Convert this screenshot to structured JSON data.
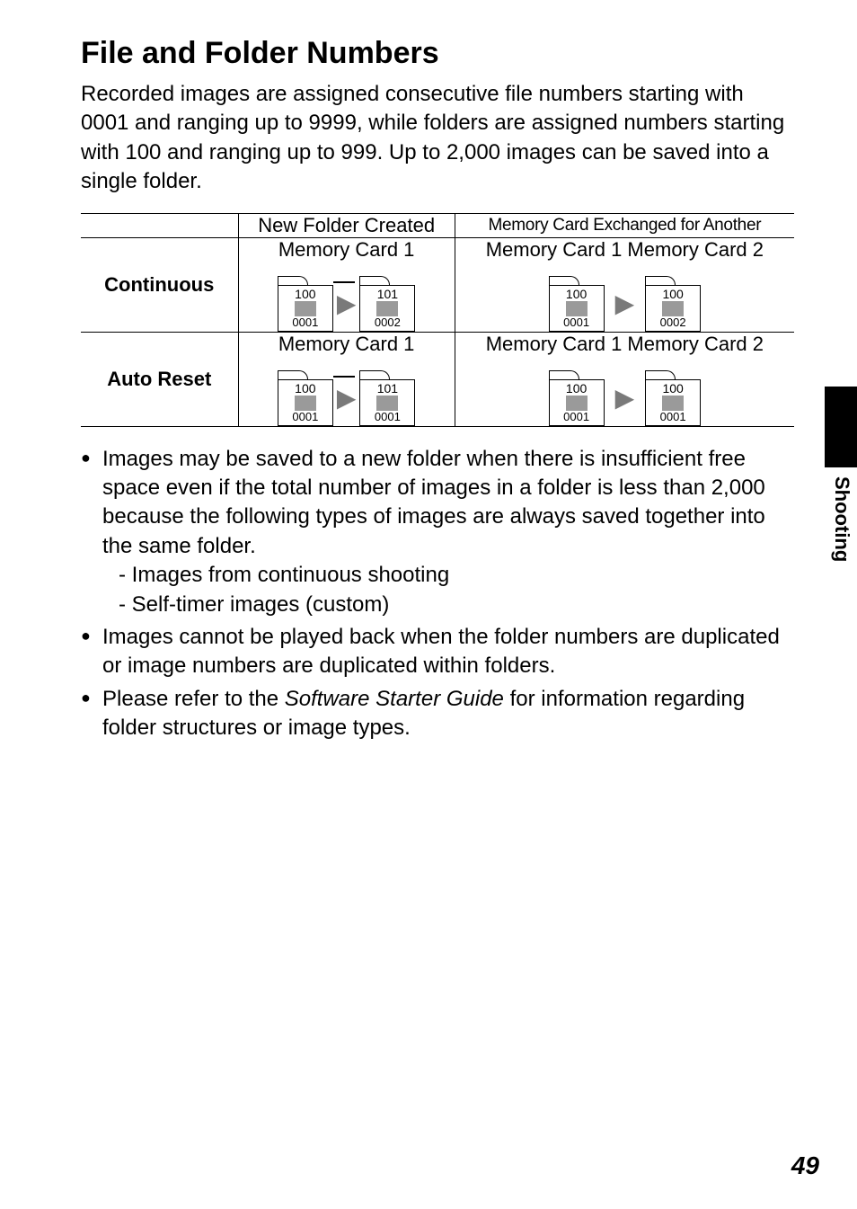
{
  "heading": "File and Folder Numbers",
  "intro": "Recorded images are assigned consecutive file numbers starting with 0001 and ranging up to 9999, while folders are assigned numbers starting with 100 and ranging up to 999. Up to 2,000 images can be saved into a single folder.",
  "table": {
    "col1_header": "New Folder Created",
    "col2_header": "Memory Card Exchanged for Another",
    "rows": [
      {
        "label": "Continuous",
        "c1_label": "Memory Card 1",
        "c1_f1_folder": "100",
        "c1_f1_file": "0001",
        "c1_f2_folder": "101",
        "c1_f2_file": "0002",
        "c2_label": "Memory Card 1 Memory Card 2",
        "c2_f1_folder": "100",
        "c2_f1_file": "0001",
        "c2_f2_folder": "100",
        "c2_f2_file": "0002"
      },
      {
        "label": "Auto Reset",
        "c1_label": "Memory Card 1",
        "c1_f1_folder": "100",
        "c1_f1_file": "0001",
        "c1_f2_folder": "101",
        "c1_f2_file": "0001",
        "c2_label": "Memory Card 1 Memory Card 2",
        "c2_f1_folder": "100",
        "c2_f1_file": "0001",
        "c2_f2_folder": "100",
        "c2_f2_file": "0001"
      }
    ]
  },
  "bullets": {
    "b1": "Images may be saved to a new folder when there is insufficient free space even if the total number of images in a folder is less than 2,000 because the following types of images are always saved together into the same folder.",
    "b1_s1": "- Images from continuous shooting",
    "b1_s2": "- Self-timer images (custom)",
    "b2": "Images cannot be played back when the folder numbers are duplicated or image numbers are duplicated within folders.",
    "b3_pre": "Please refer to the ",
    "b3_em": "Software Starter Guide",
    "b3_post": " for information regarding folder structures or image types."
  },
  "sidetext": "Shooting",
  "pagenum": "49",
  "colors": {
    "text": "#000000",
    "grey_box": "#9a9a9a",
    "arrow": "#7a7a7a",
    "background": "#ffffff"
  }
}
